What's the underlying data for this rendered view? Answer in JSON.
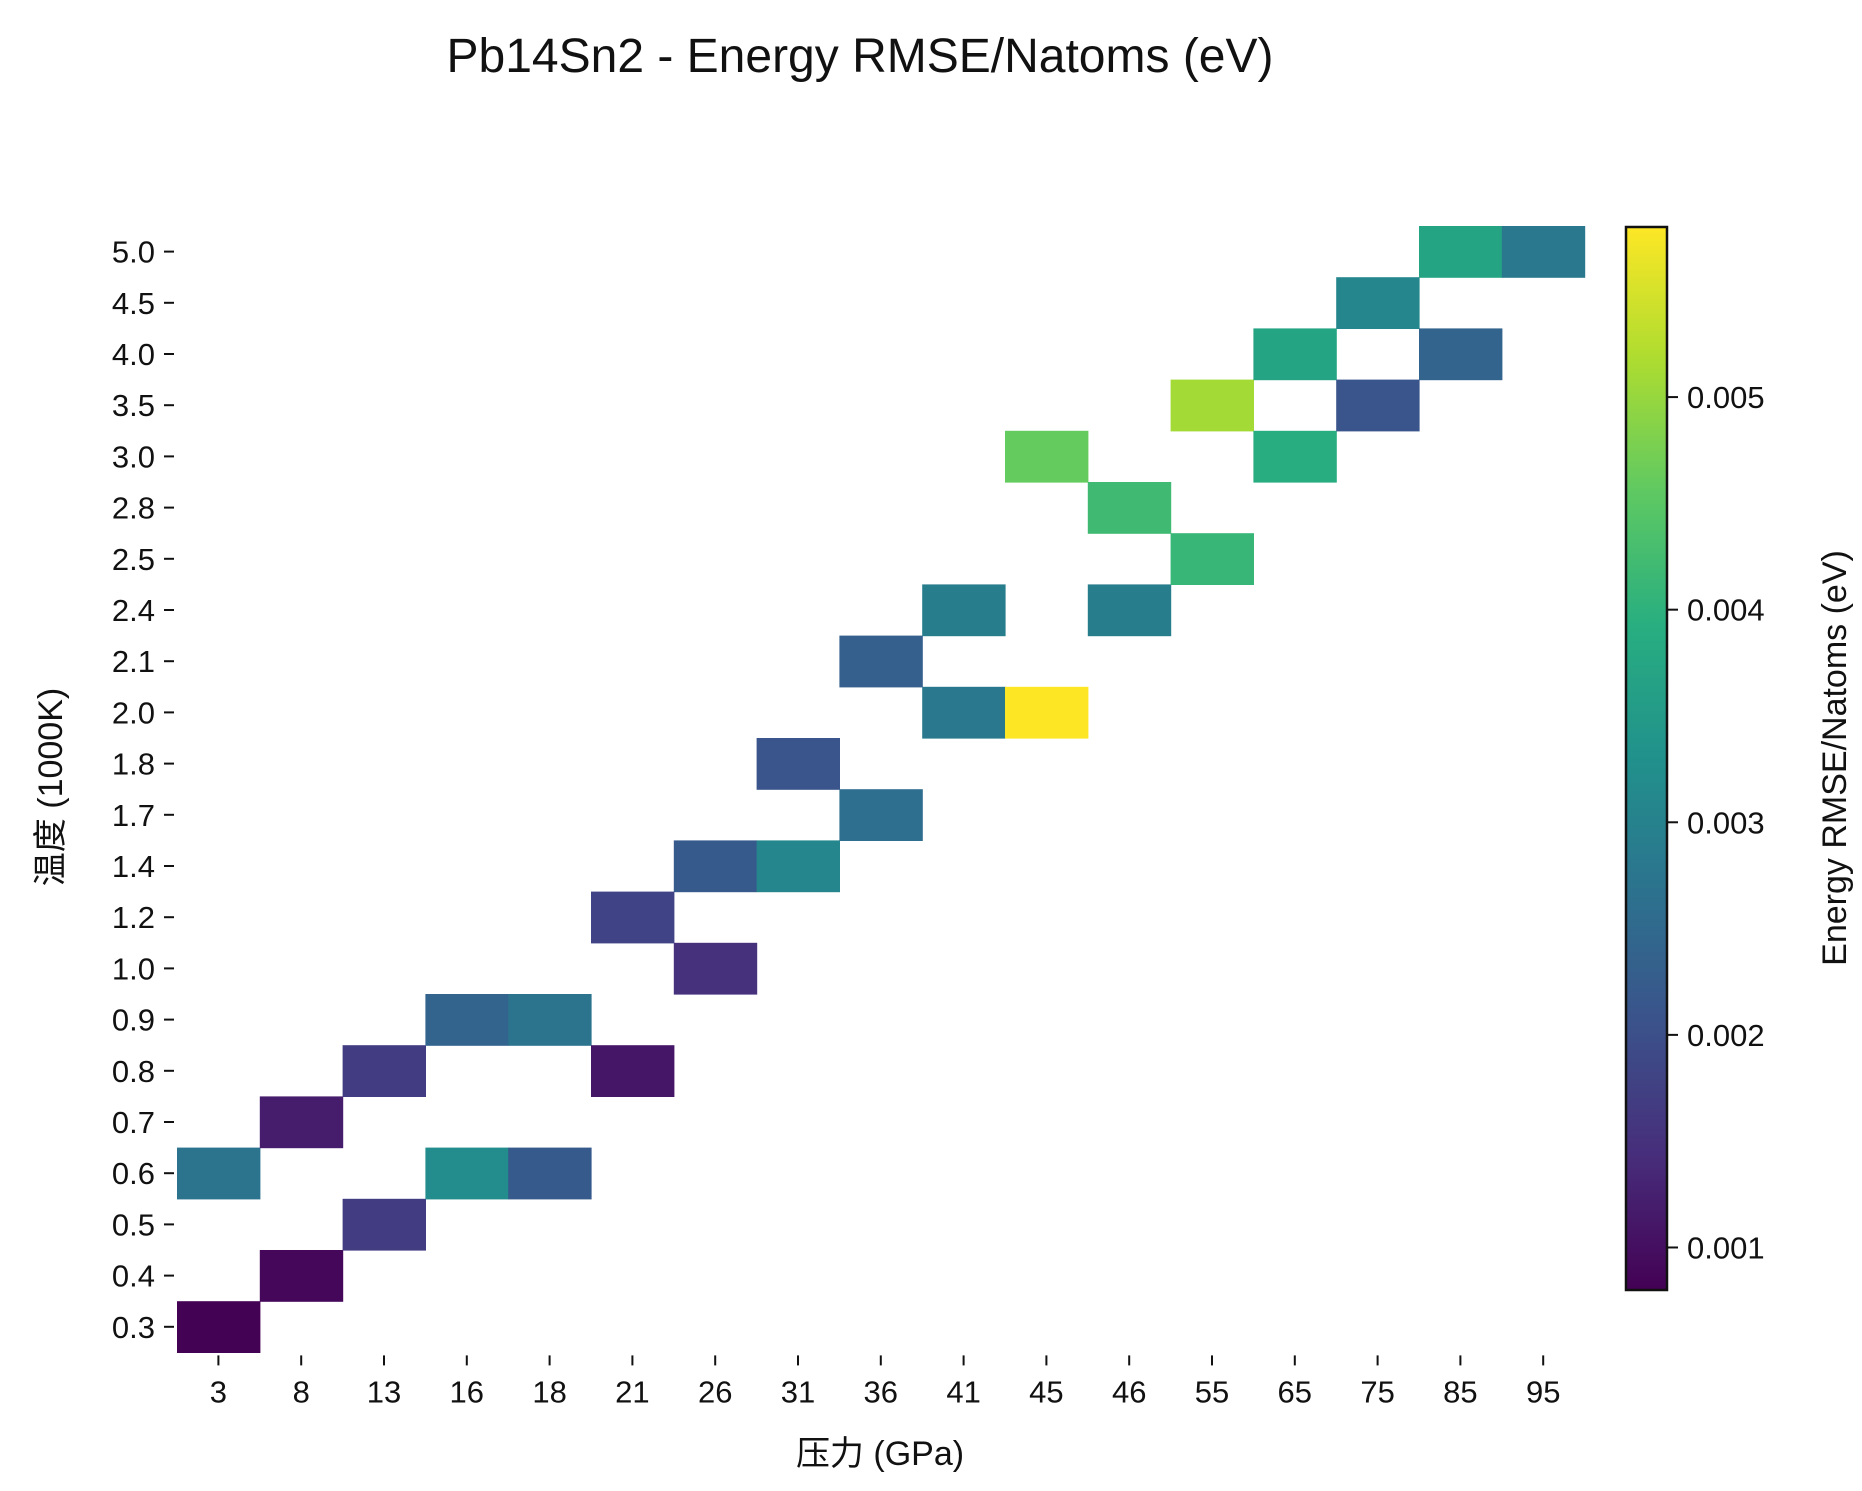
{
  "chart_data": {
    "type": "heatmap",
    "title": "Pb14Sn2 - Energy RMSE/Natoms (eV)",
    "xlabel": "压力 (GPa)",
    "ylabel": "温度 (1000K)",
    "x_categories": [
      "3",
      "8",
      "13",
      "16",
      "18",
      "21",
      "26",
      "31",
      "36",
      "41",
      "45",
      "46",
      "55",
      "65",
      "75",
      "85",
      "95"
    ],
    "y_categories": [
      "5.0",
      "4.5",
      "4.0",
      "3.5",
      "3.0",
      "2.8",
      "2.5",
      "2.4",
      "2.1",
      "2.0",
      "1.8",
      "1.7",
      "1.4",
      "1.2",
      "1.0",
      "0.9",
      "0.8",
      "0.7",
      "0.6",
      "0.5",
      "0.4",
      "0.3"
    ],
    "colorbar": {
      "label": "Energy RMSE/Natoms (eV)",
      "colormap": "viridis",
      "range": [
        0.0008,
        0.0058
      ],
      "ticks": [
        "0.001",
        "0.002",
        "0.003",
        "0.004",
        "0.005"
      ],
      "tick_values": [
        0.001,
        0.002,
        0.003,
        0.004,
        0.005
      ]
    },
    "cells": [
      {
        "x": "3",
        "y": "0.3",
        "value": 0.00082
      },
      {
        "x": "3",
        "y": "0.6",
        "value": 0.0027
      },
      {
        "x": "8",
        "y": "0.4",
        "value": 0.00088
      },
      {
        "x": "8",
        "y": "0.7",
        "value": 0.0012
      },
      {
        "x": "13",
        "y": "0.5",
        "value": 0.0017
      },
      {
        "x": "13",
        "y": "0.8",
        "value": 0.0017
      },
      {
        "x": "16",
        "y": "0.6",
        "value": 0.0032
      },
      {
        "x": "16",
        "y": "0.9",
        "value": 0.0024
      },
      {
        "x": "18",
        "y": "0.6",
        "value": 0.0022
      },
      {
        "x": "18",
        "y": "0.9",
        "value": 0.0027
      },
      {
        "x": "21",
        "y": "0.8",
        "value": 0.0011
      },
      {
        "x": "21",
        "y": "1.2",
        "value": 0.0018
      },
      {
        "x": "26",
        "y": "1.0",
        "value": 0.0015
      },
      {
        "x": "26",
        "y": "1.4",
        "value": 0.0022
      },
      {
        "x": "31",
        "y": "1.4",
        "value": 0.0031
      },
      {
        "x": "31",
        "y": "1.8",
        "value": 0.0021
      },
      {
        "x": "36",
        "y": "1.7",
        "value": 0.0026
      },
      {
        "x": "36",
        "y": "2.1",
        "value": 0.0023
      },
      {
        "x": "41",
        "y": "2.0",
        "value": 0.0028
      },
      {
        "x": "41",
        "y": "2.4",
        "value": 0.0029
      },
      {
        "x": "45",
        "y": "2.0",
        "value": 0.0058
      },
      {
        "x": "45",
        "y": "3.0",
        "value": 0.0046
      },
      {
        "x": "46",
        "y": "2.4",
        "value": 0.0029
      },
      {
        "x": "46",
        "y": "2.8",
        "value": 0.0042
      },
      {
        "x": "55",
        "y": "2.5",
        "value": 0.0041
      },
      {
        "x": "55",
        "y": "3.5",
        "value": 0.0051
      },
      {
        "x": "65",
        "y": "3.0",
        "value": 0.0039
      },
      {
        "x": "65",
        "y": "4.0",
        "value": 0.0037
      },
      {
        "x": "75",
        "y": "3.5",
        "value": 0.0021
      },
      {
        "x": "75",
        "y": "4.5",
        "value": 0.0031
      },
      {
        "x": "85",
        "y": "4.0",
        "value": 0.0024
      },
      {
        "x": "85",
        "y": "5.0",
        "value": 0.0037
      },
      {
        "x": "95",
        "y": "5.0",
        "value": 0.0028
      }
    ]
  }
}
